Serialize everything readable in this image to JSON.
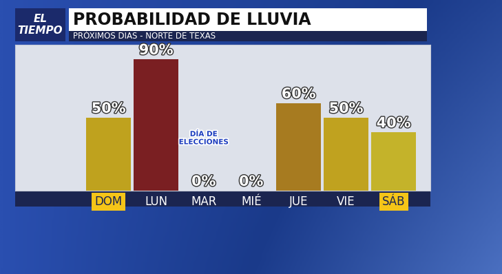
{
  "chart_data": {
    "type": "bar",
    "logo": "EL\nTIEMPO",
    "title": "PROBABILIDAD DE LLUVIA",
    "subtitle": "PRÓXIMOS DIAS - NORTE DE TEXAS",
    "categories": [
      "DOM",
      "LUN",
      "MAR",
      "MIÉ",
      "JUE",
      "VIE",
      "SÁB"
    ],
    "values": [
      50,
      90,
      0,
      0,
      60,
      50,
      40
    ],
    "value_labels": [
      "50%",
      "90%",
      "0%",
      "0%",
      "60%",
      "50%",
      "40%"
    ],
    "colors": [
      "#bfa21e",
      "#7a1f22",
      "#bfa21e",
      "#bfa21e",
      "#a77b20",
      "#c0a21f",
      "#c4b32a"
    ],
    "ylim": [
      0,
      100
    ],
    "yticks": [],
    "data_labels": true,
    "tick_labels": "x",
    "grid": false,
    "annotations": [
      {
        "text": "DÍA DE\nELECCIONES",
        "category": "MAR"
      }
    ]
  }
}
